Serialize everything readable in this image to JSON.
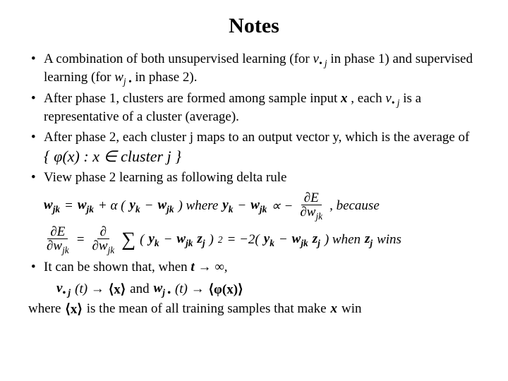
{
  "title": "Notes",
  "bullets": {
    "b1a": "A combination of both unsupervised learning (for ",
    "b1_v": "v",
    "b1_sub1": "• j",
    "b1b": " in phase 1) and supervised learning (for ",
    "b1_w": "w",
    "b1_sub2": "j •",
    "b1c": " in phase 2).",
    "b2a": "After phase 1, clusters are formed among sample input ",
    "b2_x": "x",
    "b2b": " , each ",
    "b2_v": "v",
    "b2_sub": "• j",
    "b2c": " is a representative of a cluster (average).",
    "b3": "After phase 2, each cluster j maps to an output vector y, which is the average of ",
    "b3_set": "{ φ(x) : x ∈ cluster  j }",
    "b4": "View phase 2 learning as following delta rule",
    "b5a": "It can be shown that, when ",
    "b5_t": "t → ∞",
    "b5b": ","
  },
  "formulas": {
    "f1_a": "w",
    "f1_sub": "jk",
    "f1_eq": " = ",
    "f1_b": "w",
    "f1_plus": " + α (",
    "f1_y": "y",
    "f1_k": "k",
    "f1_minus": " − ",
    "f1_close": ")  where  ",
    "f1_prop": " ∝ − ",
    "f1_comma": " , because",
    "f2_eq": " = ",
    "f2_sum": "∑",
    "f2_open": " (",
    "f2_y": "y",
    "f2_k": "k",
    "f2_minus": " − ",
    "f2_w": "w",
    "f2_jk": "jk",
    "f2_z": "z",
    "f2_j": "j",
    "f2_close": ")",
    "f2_sq": "2",
    "f2_eq2": " = −2(",
    "f2_close2": ") when ",
    "f2_wins": " wins",
    "dE": "∂E",
    "dw": "∂w",
    "conv_v": "v",
    "conv_sub1": "• j",
    "conv_t": "(t) → ",
    "conv_x": "⟨x⟩",
    "conv_and": "  and  ",
    "conv_w": "w",
    "conv_sub2": "j •",
    "conv_phi": "⟨φ(x)⟩",
    "where_a": "where ",
    "where_x": "⟨x⟩",
    "where_b": " is the mean of all training samples that make ",
    "where_xbold": "x",
    "where_c": " win"
  }
}
